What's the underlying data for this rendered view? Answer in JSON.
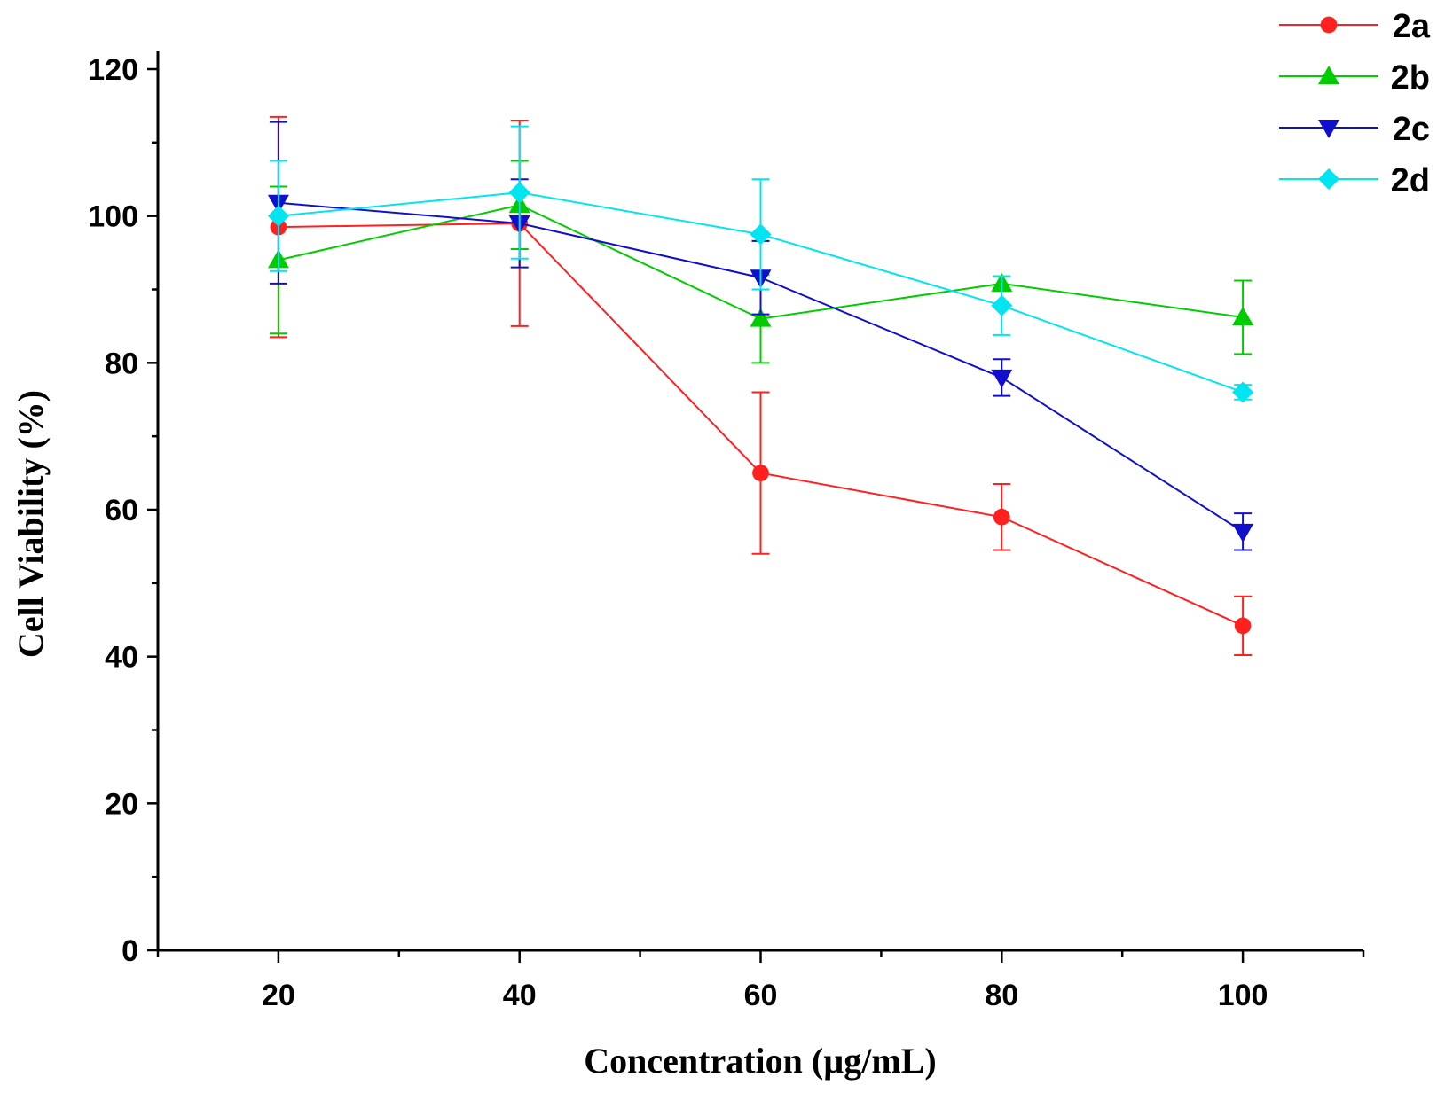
{
  "chart_data": {
    "type": "line",
    "title": "",
    "xlabel": "Concentration (µg/mL)",
    "ylabel": "Cell Viability (%)",
    "xlim": [
      10,
      110
    ],
    "ylim": [
      0,
      120
    ],
    "x_ticks": [
      20,
      40,
      60,
      80,
      100
    ],
    "y_ticks": [
      0,
      20,
      40,
      60,
      80,
      100,
      120
    ],
    "x_tick_labels": [
      "20",
      "40",
      "60",
      "80",
      "100"
    ],
    "y_tick_labels": [
      "0",
      "20",
      "40",
      "60",
      "80",
      "100",
      "120"
    ],
    "grid": false,
    "legend_position": "top-right",
    "x": [
      20,
      40,
      60,
      80,
      100
    ],
    "series": [
      {
        "name": "2a",
        "color": "#ff2020",
        "marker": "circle",
        "values": [
          98.5,
          99,
          65,
          59,
          44.2
        ],
        "errors": [
          15,
          14,
          11,
          4.5,
          4
        ]
      },
      {
        "name": "2b",
        "color": "#00cc00",
        "marker": "triangle-up",
        "values": [
          94,
          101.5,
          86,
          90.8,
          86.2
        ],
        "errors": [
          10,
          6,
          6,
          1,
          5
        ]
      },
      {
        "name": "2c",
        "color": "#1010cc",
        "marker": "triangle-down",
        "values": [
          101.8,
          99,
          91.6,
          78,
          57
        ],
        "errors": [
          11,
          6,
          5,
          2.5,
          2.5
        ]
      },
      {
        "name": "2d",
        "color": "#00e5f0",
        "marker": "diamond",
        "values": [
          100,
          103.2,
          97.5,
          87.8,
          76
        ],
        "errors": [
          7.5,
          9,
          7.5,
          4,
          1
        ]
      }
    ]
  }
}
